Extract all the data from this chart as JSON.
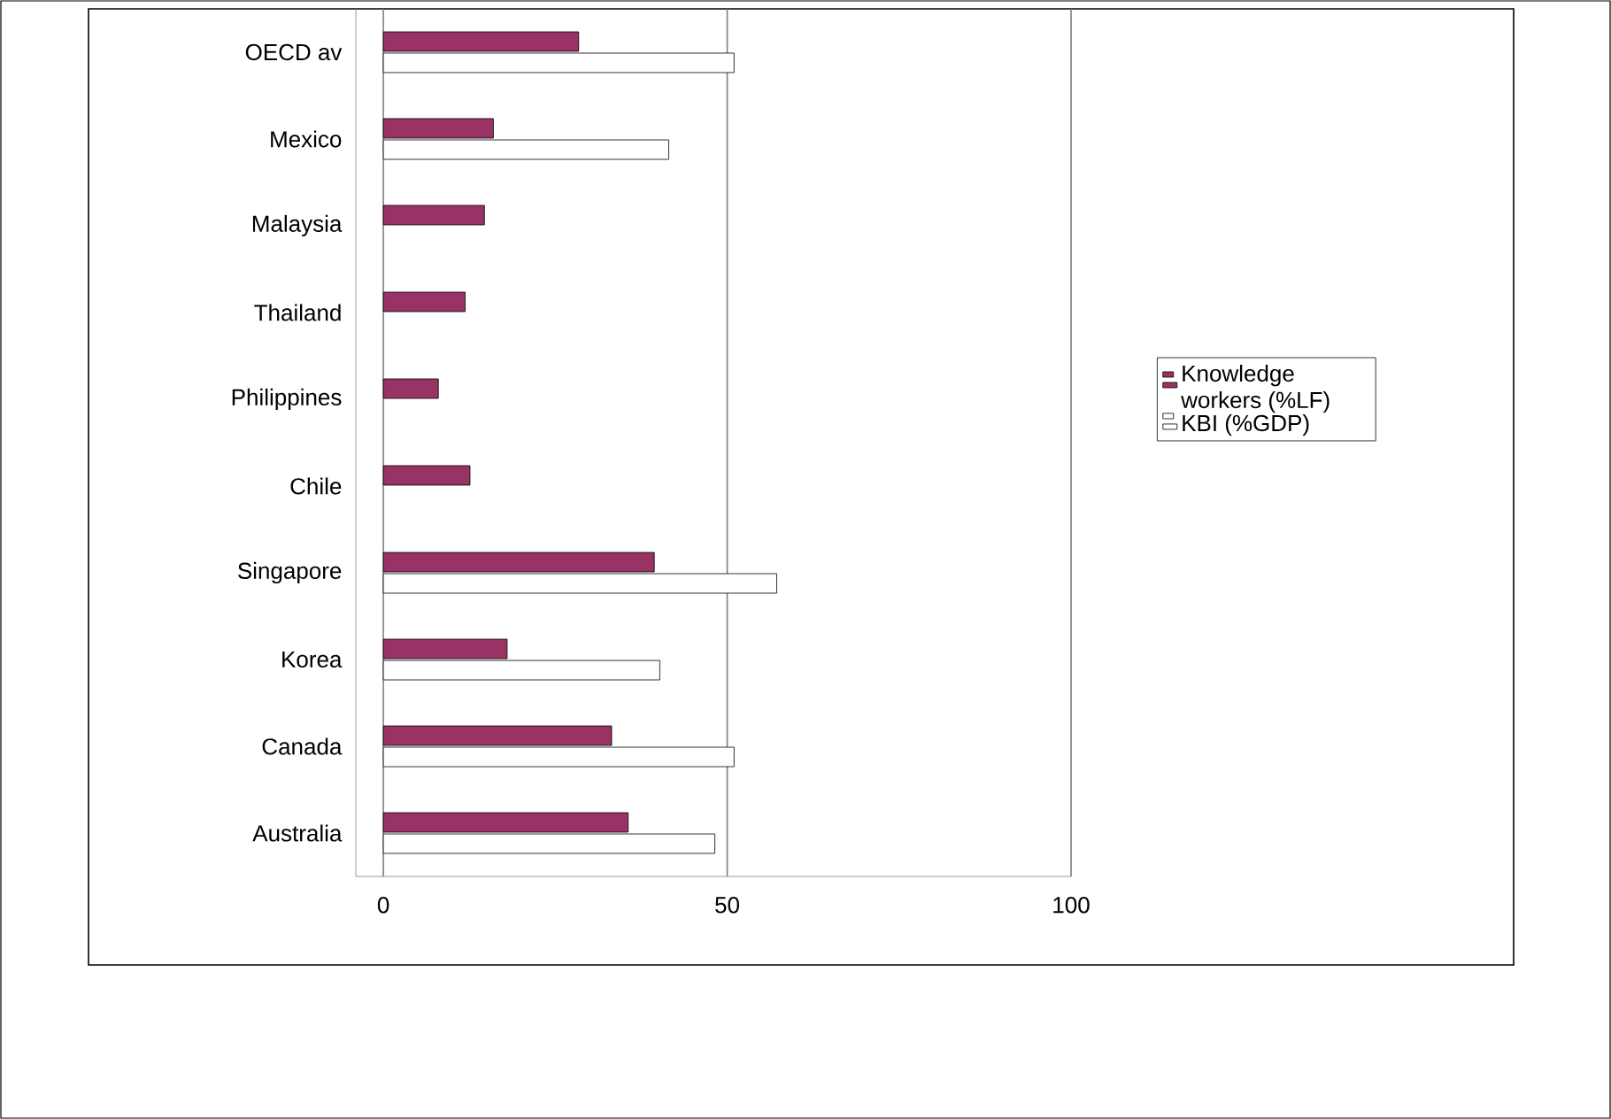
{
  "chart_data": {
    "type": "bar",
    "orientation": "horizontal",
    "categories": [
      "OECD av",
      "Mexico",
      "Malaysia",
      "Thailand",
      "Philippines",
      "Chile",
      "Singapore",
      "Korea",
      "Canada",
      "Australia"
    ],
    "series": [
      {
        "name": "Knowledge workers (%LF)",
        "color": "#993366",
        "values": [
          28.4,
          16,
          14.7,
          11.9,
          8,
          12.6,
          39.4,
          18,
          33.2,
          35.6
        ]
      },
      {
        "name": "KBI (%GDP)",
        "color": "#ffffff",
        "values": [
          51,
          41.5,
          null,
          null,
          null,
          null,
          57.2,
          40.2,
          51,
          48.2
        ]
      }
    ],
    "xlim": [
      -4,
      100
    ],
    "xticks": [
      0,
      50,
      100
    ],
    "grid": "x",
    "legend": "right"
  }
}
